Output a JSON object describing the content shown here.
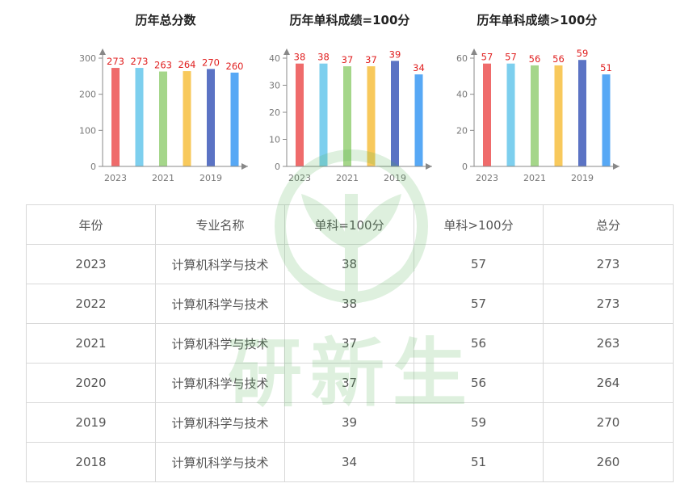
{
  "chart_data": [
    {
      "type": "bar",
      "title": "历年总分数",
      "categories": [
        "2023",
        "2022",
        "2021",
        "2020",
        "2019",
        "2018"
      ],
      "x_tick_labels": [
        "2023",
        "",
        "2021",
        "",
        "2019",
        ""
      ],
      "values": [
        273,
        273,
        263,
        264,
        270,
        260
      ],
      "yticks": [
        0,
        100,
        200,
        300
      ],
      "ylim": [
        0,
        300
      ],
      "colors": [
        "#ef6b6b",
        "#7dcfee",
        "#a5d68a",
        "#f8c95c",
        "#5b73c4",
        "#57a8f5"
      ],
      "value_label_color": "#e02020"
    },
    {
      "type": "bar",
      "title": "历年单科成绩=100分",
      "categories": [
        "2023",
        "2022",
        "2021",
        "2020",
        "2019",
        "2018"
      ],
      "x_tick_labels": [
        "2023",
        "",
        "2021",
        "",
        "2019",
        ""
      ],
      "values": [
        38,
        38,
        37,
        37,
        39,
        34
      ],
      "yticks": [
        0,
        10,
        20,
        30,
        40
      ],
      "ylim": [
        0,
        40
      ],
      "colors": [
        "#ef6b6b",
        "#7dcfee",
        "#a5d68a",
        "#f8c95c",
        "#5b73c4",
        "#57a8f5"
      ],
      "value_label_color": "#e02020"
    },
    {
      "type": "bar",
      "title": "历年单科成绩>100分",
      "categories": [
        "2023",
        "2022",
        "2021",
        "2020",
        "2019",
        "2018"
      ],
      "x_tick_labels": [
        "2023",
        "",
        "2021",
        "",
        "2019",
        ""
      ],
      "values": [
        57,
        57,
        56,
        56,
        59,
        51
      ],
      "yticks": [
        0,
        20,
        40,
        60
      ],
      "ylim": [
        0,
        60
      ],
      "colors": [
        "#ef6b6b",
        "#7dcfee",
        "#a5d68a",
        "#f8c95c",
        "#5b73c4",
        "#57a8f5"
      ],
      "value_label_color": "#e02020"
    }
  ],
  "table": {
    "headers": [
      "年份",
      "专业名称",
      "单科=100分",
      "单科>100分",
      "总分"
    ],
    "rows": [
      [
        "2023",
        "计算机科学与技术",
        "38",
        "57",
        "273"
      ],
      [
        "2022",
        "计算机科学与技术",
        "38",
        "57",
        "273"
      ],
      [
        "2021",
        "计算机科学与技术",
        "37",
        "56",
        "263"
      ],
      [
        "2020",
        "计算机科学与技术",
        "37",
        "56",
        "264"
      ],
      [
        "2019",
        "计算机科学与技术",
        "39",
        "59",
        "270"
      ],
      [
        "2018",
        "计算机科学与技术",
        "34",
        "51",
        "260"
      ]
    ]
  },
  "watermark": {
    "text": "研新生",
    "icon": "sprout-logo-icon"
  }
}
